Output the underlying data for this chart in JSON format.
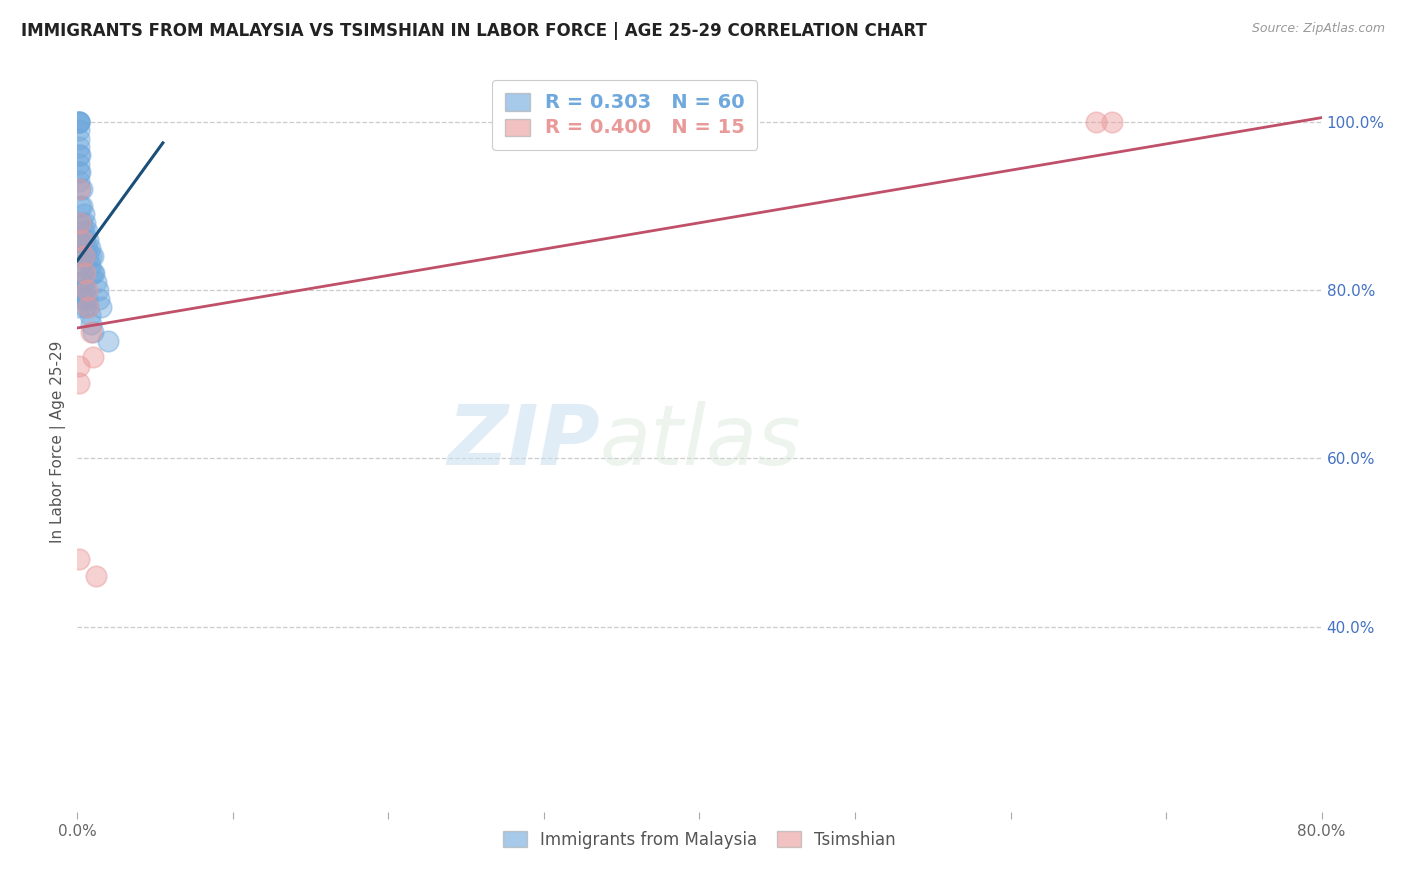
{
  "title": "IMMIGRANTS FROM MALAYSIA VS TSIMSHIAN IN LABOR FORCE | AGE 25-29 CORRELATION CHART",
  "source": "Source: ZipAtlas.com",
  "ylabel": "In Labor Force | Age 25-29",
  "xlim": [
    0.0,
    0.8
  ],
  "ylim": [
    0.18,
    1.06
  ],
  "xticks": [
    0.0,
    0.1,
    0.2,
    0.3,
    0.4,
    0.5,
    0.6,
    0.7,
    0.8
  ],
  "xticklabels": [
    "0.0%",
    "",
    "",
    "",
    "",
    "",
    "",
    "",
    "80.0%"
  ],
  "ytick_positions": [
    0.4,
    0.6,
    0.8,
    1.0
  ],
  "ytick_labels": [
    "40.0%",
    "60.0%",
    "80.0%",
    "100.0%"
  ],
  "blue_R": "0.303",
  "blue_N": "60",
  "pink_R": "0.400",
  "pink_N": "15",
  "blue_color": "#6fa8dc",
  "pink_color": "#ea9999",
  "blue_line_color": "#1a4f7a",
  "pink_line_color": "#c0506a",
  "watermark_zip": "ZIP",
  "watermark_atlas": "atlas",
  "blue_scatter_x": [
    0.001,
    0.001,
    0.001,
    0.001,
    0.001,
    0.001,
    0.001,
    0.001,
    0.001,
    0.001,
    0.001,
    0.002,
    0.002,
    0.002,
    0.002,
    0.003,
    0.003,
    0.003,
    0.003,
    0.004,
    0.004,
    0.004,
    0.005,
    0.005,
    0.005,
    0.006,
    0.006,
    0.007,
    0.007,
    0.008,
    0.008,
    0.009,
    0.009,
    0.01,
    0.01,
    0.011,
    0.012,
    0.013,
    0.014,
    0.015,
    0.001,
    0.001,
    0.001,
    0.001,
    0.001,
    0.001,
    0.002,
    0.002,
    0.003,
    0.003,
    0.004,
    0.004,
    0.005,
    0.005,
    0.006,
    0.007,
    0.008,
    0.009,
    0.01,
    0.02
  ],
  "blue_scatter_y": [
    1.0,
    1.0,
    1.0,
    1.0,
    0.99,
    0.98,
    0.97,
    0.96,
    0.95,
    0.94,
    0.93,
    0.96,
    0.94,
    0.92,
    0.9,
    0.92,
    0.9,
    0.88,
    0.86,
    0.89,
    0.87,
    0.85,
    0.88,
    0.86,
    0.84,
    0.87,
    0.85,
    0.86,
    0.84,
    0.85,
    0.83,
    0.84,
    0.82,
    0.84,
    0.82,
    0.82,
    0.81,
    0.8,
    0.79,
    0.78,
    0.88,
    0.86,
    0.84,
    0.82,
    0.8,
    0.78,
    0.83,
    0.81,
    0.82,
    0.8,
    0.81,
    0.79,
    0.8,
    0.78,
    0.79,
    0.78,
    0.77,
    0.76,
    0.75,
    0.74
  ],
  "pink_scatter_x": [
    0.001,
    0.002,
    0.003,
    0.004,
    0.005,
    0.006,
    0.007,
    0.009,
    0.01,
    0.001,
    0.001,
    0.001,
    0.012,
    0.655,
    0.665
  ],
  "pink_scatter_y": [
    0.92,
    0.88,
    0.86,
    0.84,
    0.82,
    0.8,
    0.78,
    0.75,
    0.72,
    0.71,
    0.69,
    0.48,
    0.46,
    1.0,
    1.0
  ],
  "blue_trend_x": [
    0.0,
    0.055
  ],
  "blue_trend_y": [
    0.835,
    0.975
  ],
  "pink_trend_x": [
    0.0,
    0.8
  ],
  "pink_trend_y": [
    0.755,
    1.005
  ]
}
